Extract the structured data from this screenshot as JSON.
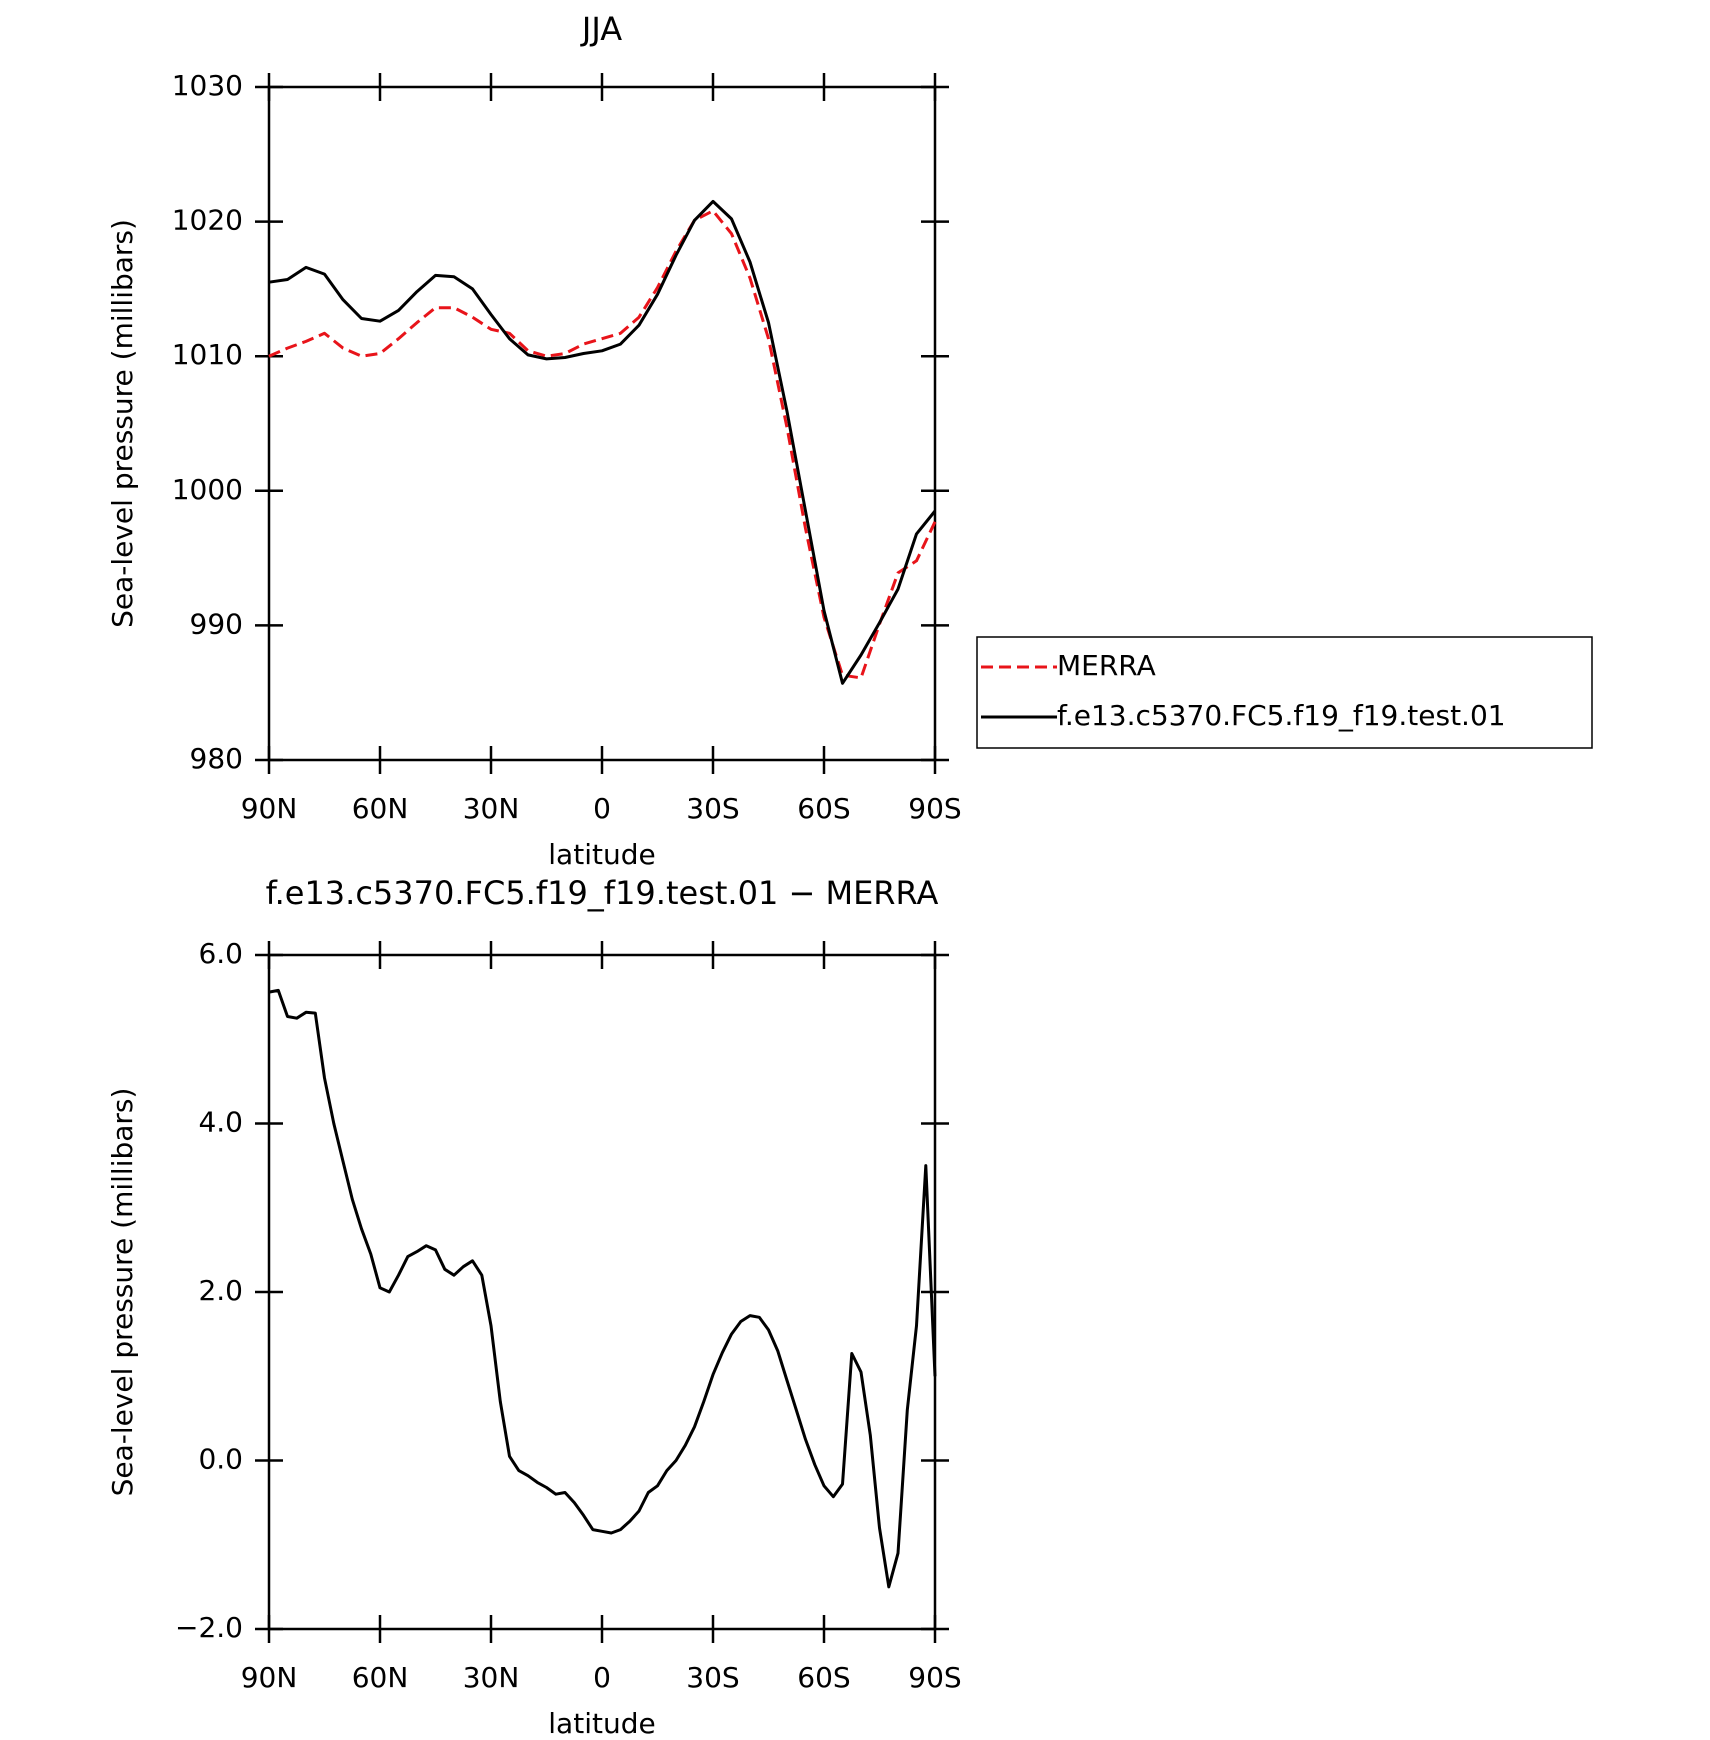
{
  "chart_data": [
    {
      "type": "line",
      "title": "JJA",
      "xlabel": "latitude",
      "ylabel": "Sea-level pressure (millibars)",
      "x": [
        90,
        85,
        80,
        75,
        70,
        65,
        60,
        55,
        50,
        45,
        40,
        35,
        30,
        25,
        20,
        15,
        10,
        5,
        0,
        -5,
        -10,
        -15,
        -20,
        -25,
        -30,
        -35,
        -40,
        -45,
        -50,
        -55,
        -60,
        -65,
        -70,
        -75,
        -80,
        -85,
        -90
      ],
      "series": [
        {
          "name": "MERRA",
          "color": "#e8141a",
          "dashed": true,
          "values": [
            1010.0,
            1010.6,
            1011.1,
            1011.7,
            1010.6,
            1010.0,
            1010.2,
            1011.3,
            1012.5,
            1013.6,
            1013.6,
            1012.9,
            1012.0,
            1011.7,
            1010.4,
            1010.0,
            1010.2,
            1010.9,
            1011.3,
            1011.7,
            1012.9,
            1015.1,
            1017.8,
            1020.1,
            1020.8,
            1019.1,
            1015.8,
            1011.3,
            1004.7,
            997.2,
            990.6,
            986.3,
            986.1,
            990.1,
            993.9,
            994.8,
            997.7
          ]
        },
        {
          "name": "f.e13.c5370.FC5.f19_f19.test.01",
          "color": "#000000",
          "dashed": false,
          "values": [
            1015.5,
            1015.7,
            1016.6,
            1016.1,
            1014.2,
            1012.8,
            1012.6,
            1013.4,
            1014.8,
            1016.0,
            1015.9,
            1015.0,
            1013.1,
            1011.3,
            1010.1,
            1009.8,
            1009.9,
            1010.2,
            1010.4,
            1010.9,
            1012.3,
            1014.6,
            1017.5,
            1020.1,
            1021.5,
            1020.2,
            1017.0,
            1012.5,
            1005.9,
            998.5,
            991.1,
            985.7,
            987.8,
            990.2,
            992.7,
            996.8,
            998.5
          ]
        }
      ],
      "xlim": [
        90,
        -90
      ],
      "xticks": [
        {
          "value": 90,
          "label": "90N"
        },
        {
          "value": 60,
          "label": "60N"
        },
        {
          "value": 30,
          "label": "30N"
        },
        0,
        {
          "value": -30,
          "label": "30S"
        },
        {
          "value": -60,
          "label": "60S"
        },
        {
          "value": -90,
          "label": "90S"
        }
      ],
      "ylim": [
        980,
        1030
      ],
      "yticks": [
        980,
        990,
        1000,
        1010,
        1020,
        1030
      ],
      "legend": "outside-right"
    },
    {
      "type": "line",
      "title": "f.e13.c5370.FC5.f19_f19.test.01 − MERRA",
      "xlabel": "latitude",
      "ylabel": "Sea-level pressure (millibars)",
      "x": [
        90,
        87.5,
        85,
        82.5,
        80,
        77.5,
        75,
        72.5,
        70,
        67.5,
        65,
        62.5,
        60,
        57.5,
        55,
        52.5,
        50,
        47.5,
        45,
        42.5,
        40,
        37.5,
        35,
        32.5,
        30,
        27.5,
        25,
        22.5,
        20,
        17.5,
        15,
        12.5,
        10,
        7.5,
        5,
        2.5,
        0,
        -2.5,
        -5,
        -7.5,
        -10,
        -12.5,
        -15,
        -17.5,
        -20,
        -22.5,
        -25,
        -27.5,
        -30,
        -32.5,
        -35,
        -37.5,
        -40,
        -42.5,
        -45,
        -47.5,
        -50,
        -52.5,
        -55,
        -57.5,
        -60,
        -62.5,
        -65,
        -67.5,
        -70,
        -72.5,
        -75,
        -77.5,
        -80,
        -82.5,
        -85,
        -87.5,
        -90
      ],
      "series": [
        {
          "name": "difference",
          "color": "#000000",
          "dashed": false,
          "values": [
            5.56,
            5.58,
            5.27,
            5.25,
            5.32,
            5.31,
            4.54,
            4.0,
            3.55,
            3.1,
            2.75,
            2.45,
            2.05,
            2.0,
            2.2,
            2.42,
            2.48,
            2.55,
            2.5,
            2.27,
            2.2,
            2.3,
            2.37,
            2.2,
            1.6,
            0.7,
            0.05,
            -0.12,
            -0.18,
            -0.26,
            -0.32,
            -0.4,
            -0.38,
            -0.5,
            -0.65,
            -0.82,
            -0.84,
            -0.86,
            -0.82,
            -0.72,
            -0.6,
            -0.38,
            -0.3,
            -0.12,
            0.0,
            0.18,
            0.4,
            0.7,
            1.02,
            1.28,
            1.5,
            1.65,
            1.72,
            1.7,
            1.55,
            1.3,
            0.95,
            0.6,
            0.25,
            -0.05,
            -0.3,
            -0.43,
            -0.28,
            1.27,
            1.05,
            0.3,
            -0.8,
            -1.5,
            -1.1,
            0.6,
            1.6,
            3.5,
            1.0
          ]
        }
      ],
      "xlim": [
        90,
        -90
      ],
      "xticks": [
        {
          "value": 90,
          "label": "90N"
        },
        {
          "value": 60,
          "label": "60N"
        },
        {
          "value": 30,
          "label": "30N"
        },
        0,
        {
          "value": -30,
          "label": "30S"
        },
        {
          "value": -60,
          "label": "60S"
        },
        {
          "value": -90,
          "label": "90S"
        }
      ],
      "ylim": [
        -2,
        6
      ],
      "yticks": [
        {
          "value": -2,
          "label": "−2.0"
        },
        {
          "value": 0,
          "label": "0.0"
        },
        {
          "value": 2,
          "label": "2.0"
        },
        {
          "value": 4,
          "label": "4.0"
        },
        {
          "value": 6,
          "label": "6.0"
        }
      ]
    }
  ]
}
